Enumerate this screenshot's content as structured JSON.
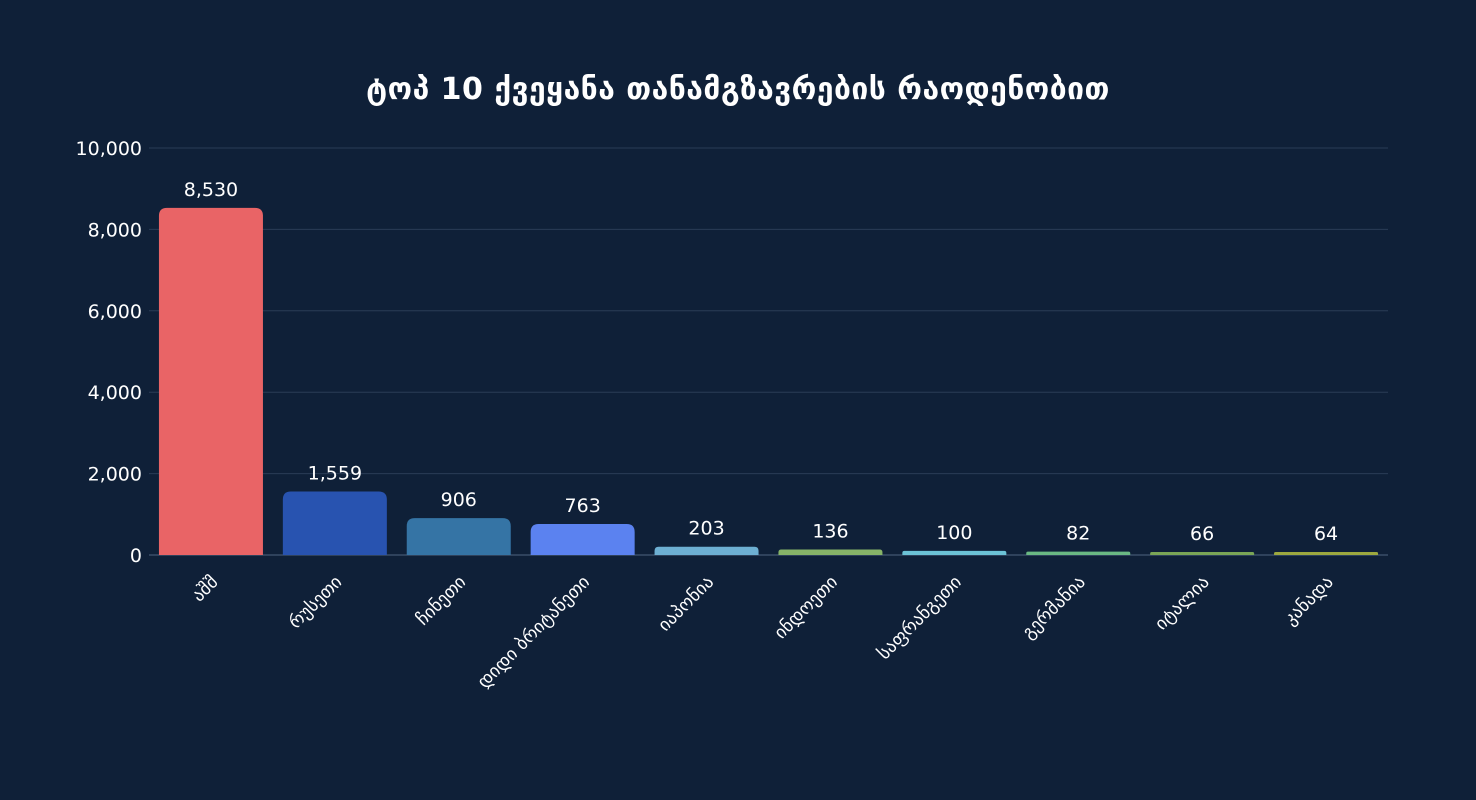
{
  "chart_data": {
    "type": "bar",
    "title": "ტოპ 10 ქვეყანა თანამგზავრების რაოდენობით",
    "categories": [
      "აშშ",
      "რუსეთი",
      "ჩინეთი",
      "დიდი ბრიტანეთი",
      "იაპონია",
      "ინდოეთი",
      "საფრანგეთი",
      "გერმანია",
      "იტალია",
      "კანადა"
    ],
    "values": [
      8530,
      1559,
      906,
      763,
      203,
      136,
      100,
      82,
      66,
      64
    ],
    "value_labels": [
      "8,530",
      "1,559",
      "906",
      "763",
      "203",
      "136",
      "100",
      "82",
      "66",
      "64"
    ],
    "colors": [
      "#e96466",
      "#2853b0",
      "#3574a5",
      "#5b82f0",
      "#6dafd2",
      "#86b368",
      "#6cc2d6",
      "#6ab883",
      "#7aa556",
      "#9ca83f"
    ],
    "ylim": [
      0,
      10000
    ],
    "yticks": [
      0,
      2000,
      4000,
      6000,
      8000,
      10000
    ],
    "ytick_labels": [
      "0",
      "2,000",
      "4,000",
      "6,000",
      "8,000",
      "10,000"
    ],
    "xlabel": "",
    "ylabel": "",
    "grid": true,
    "legend": "none"
  },
  "style": {
    "background": "#0f2038",
    "text_color": "#ffffff",
    "grid_color": "#2a3c56"
  }
}
